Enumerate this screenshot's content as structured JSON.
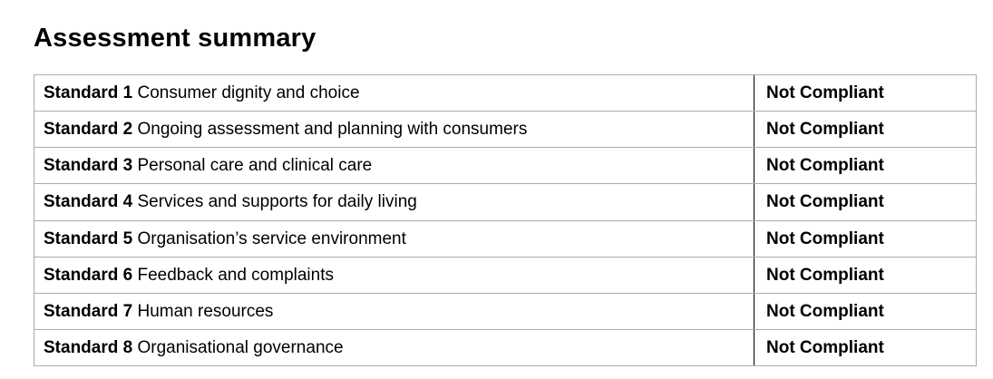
{
  "page": {
    "title": "Assessment summary"
  },
  "table": {
    "columns": [
      "standard",
      "status"
    ],
    "rows": [
      {
        "standard": "Standard 1",
        "description": "Consumer dignity and choice",
        "status": "Not Compliant"
      },
      {
        "standard": "Standard 2",
        "description": "Ongoing assessment and planning with consumers",
        "status": "Not Compliant"
      },
      {
        "standard": "Standard 3",
        "description": "Personal care and clinical care",
        "status": "Not Compliant"
      },
      {
        "standard": "Standard 4",
        "description": "Services and supports for daily living",
        "status": "Not Compliant"
      },
      {
        "standard": "Standard 5",
        "description": "Organisation’s service environment",
        "status": "Not Compliant"
      },
      {
        "standard": "Standard 6",
        "description": "Feedback and complaints",
        "status": "Not Compliant"
      },
      {
        "standard": "Standard 7",
        "description": "Human resources",
        "status": "Not Compliant"
      },
      {
        "standard": "Standard 8",
        "description": "Organisational governance",
        "status": "Not Compliant"
      }
    ]
  },
  "colors": {
    "text": "#000000",
    "background": "#ffffff",
    "border_light": "#ababab",
    "border_dark": "#000000"
  }
}
